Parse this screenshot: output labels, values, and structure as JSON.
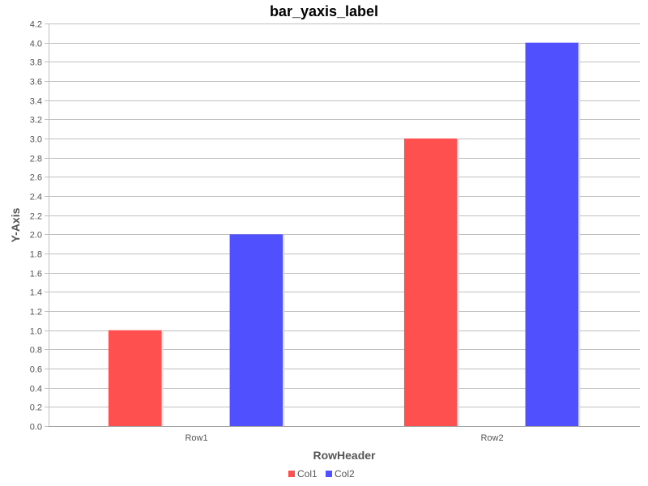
{
  "chart_data": {
    "type": "bar",
    "title": "bar_yaxis_label",
    "xlabel": "RowHeader",
    "ylabel": "Y-Axis",
    "categories": [
      "Row1",
      "Row2"
    ],
    "series": [
      {
        "name": "Col1",
        "values": [
          1.0,
          3.0
        ],
        "color": "#ff5050"
      },
      {
        "name": "Col2",
        "values": [
          2.0,
          4.0
        ],
        "color": "#5050ff"
      }
    ],
    "ylim": [
      0,
      4.2
    ],
    "ytick_step": 0.2,
    "grid": true,
    "legend_placement": "bottom-center"
  }
}
